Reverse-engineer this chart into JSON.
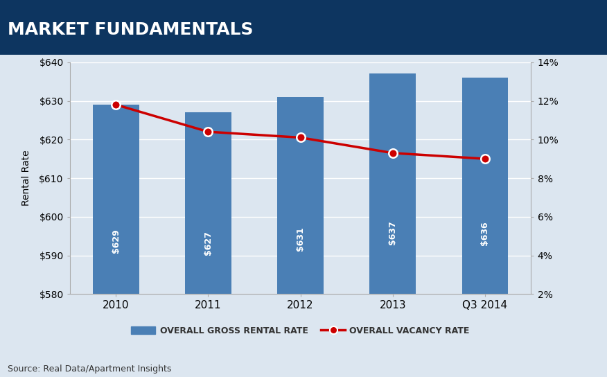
{
  "title": "MARKET FUNDAMENTALS",
  "title_bg_color": "#0d3560",
  "title_text_color": "#ffffff",
  "fig_bg_color": "#dce6f0",
  "chart_bg_color": "#dce6f0",
  "categories": [
    "2010",
    "2011",
    "2012",
    "2013",
    "Q3 2014"
  ],
  "bar_values": [
    629,
    627,
    631,
    637,
    636
  ],
  "bar_color": "#4a7fb5",
  "bar_labels": [
    "$629",
    "$627",
    "$631",
    "$637",
    "$636"
  ],
  "vacancy_values": [
    11.8,
    10.4,
    10.1,
    9.3,
    9.0
  ],
  "vacancy_line_color": "#cc0000",
  "vacancy_marker_facecolor": "#cc0000",
  "vacancy_marker_edgecolor": "#ffffff",
  "ylabel_left": "Rental Rate",
  "ylim_left": [
    580,
    640
  ],
  "yticks_left": [
    580,
    590,
    600,
    610,
    620,
    630,
    640
  ],
  "ytick_labels_left": [
    "$580",
    "$590",
    "$600",
    "$610",
    "$620",
    "$630",
    "$640"
  ],
  "ylim_right": [
    2,
    14
  ],
  "yticks_right": [
    2,
    4,
    6,
    8,
    10,
    12,
    14
  ],
  "ytick_labels_right": [
    "2%",
    "4%",
    "6%",
    "8%",
    "10%",
    "12%",
    "14%"
  ],
  "legend_bar_label": "OVERALL GROSS RENTAL RATE",
  "legend_line_label": "OVERALL VACANCY RATE",
  "source_text": "Source: Real Data/Apartment Insights",
  "bar_label_fontsize": 9,
  "axis_label_fontsize": 10,
  "tick_fontsize": 10,
  "title_fontsize": 18,
  "legend_fontsize": 9
}
